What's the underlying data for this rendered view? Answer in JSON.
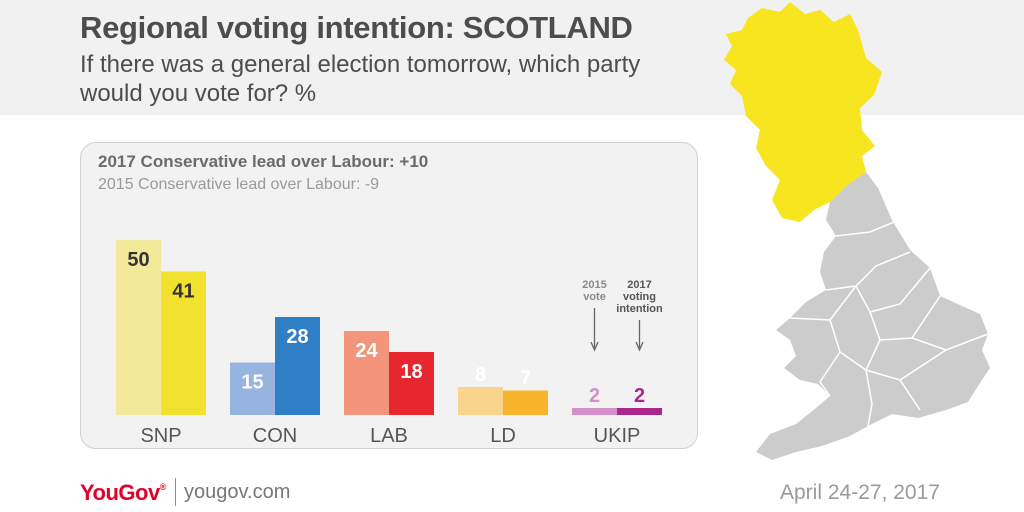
{
  "header": {
    "title": "Regional voting intention: SCOTLAND",
    "subtitle": "If there was a general election tomorrow, which party would you vote for? %"
  },
  "panel": {
    "lead_2017": "2017 Conservative lead over Labour: +10",
    "lead_2015": "2015 Conservative lead over Labour: -9"
  },
  "chart_data": {
    "type": "bar",
    "title": "If there was a general election tomorrow, which party would you vote for? %",
    "categories": [
      "SNP",
      "CON",
      "LAB",
      "LD",
      "UKIP"
    ],
    "series": [
      {
        "name": "2015 vote",
        "values": [
          50,
          15,
          24,
          8,
          2
        ]
      },
      {
        "name": "2017 voting intention",
        "values": [
          41,
          28,
          18,
          7,
          2
        ]
      }
    ],
    "colors": {
      "2015": [
        "#f3e99a",
        "#96b4df",
        "#f3957b",
        "#f8d48d",
        "#d590c9"
      ],
      "2017": [
        "#f2e12f",
        "#2f7fc6",
        "#e8262f",
        "#f8b42d",
        "#a8288f"
      ],
      "label_2015": [
        "#333333",
        "#ffffff",
        "#ffffff",
        "#ffffff",
        "#d590c9"
      ],
      "label_2017": [
        "#333333",
        "#ffffff",
        "#ffffff",
        "#ffffff",
        "#a8288f"
      ]
    },
    "annotations": [
      {
        "text": "2015 vote",
        "target": "UKIP 2015"
      },
      {
        "text": "2017 voting intention",
        "target": "UKIP 2017"
      }
    ],
    "xlabel": "",
    "ylabel": "",
    "ylim": [
      0,
      50
    ]
  },
  "map": {
    "highlight_color": "#f7e51f",
    "base_color": "#cccccc",
    "region": "Scotland"
  },
  "footer": {
    "brand": "YouGov",
    "brand_mark": "®",
    "url": "yougov.com",
    "date": "April 24-27, 2017"
  }
}
